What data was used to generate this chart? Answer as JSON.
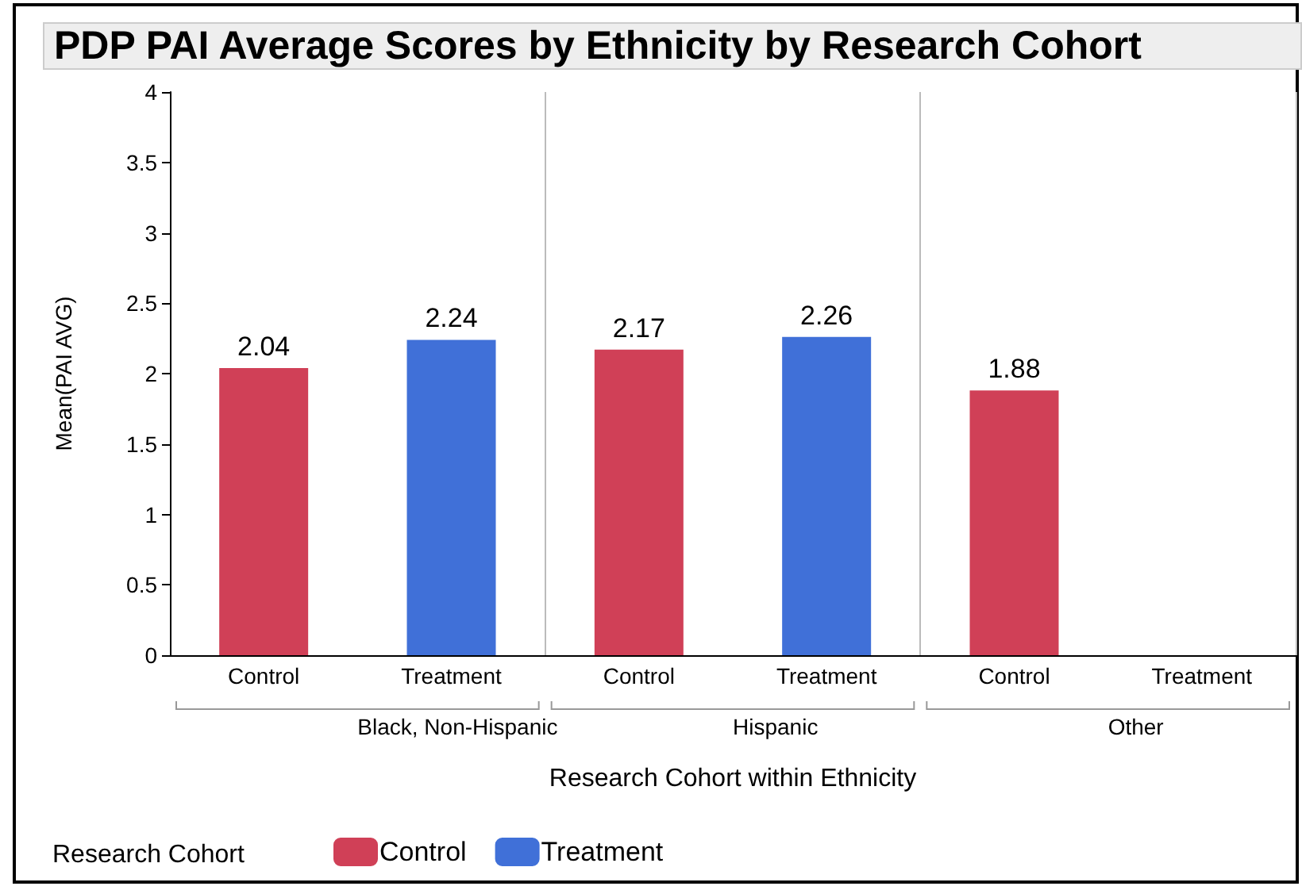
{
  "chart_data": {
    "type": "bar",
    "title": "PDP PAI Average Scores by Ethnicity by Research Cohort",
    "xlabel": "Research Cohort within Ethnicity",
    "ylabel": "Mean(PAI AVG)",
    "legend_title": "Research Cohort",
    "categories": [
      "Control",
      "Treatment",
      "Control",
      "Treatment",
      "Control",
      "Treatment"
    ],
    "annotations": [
      "Black, Non-Hispanic",
      "Hispanic",
      "Other"
    ],
    "series": [
      {
        "name": "Control",
        "color": "#d04057",
        "values": [
          2.04,
          null,
          2.17,
          null,
          1.88,
          null
        ]
      },
      {
        "name": "Treatment",
        "color": "#4070d8",
        "values": [
          null,
          2.24,
          null,
          2.26,
          null,
          null
        ]
      }
    ],
    "ylim": [
      0,
      4
    ],
    "yticks": [
      0,
      0.5,
      1,
      1.5,
      2,
      2.5,
      3,
      3.5,
      4
    ],
    "data_labels": true,
    "grid": false,
    "legend": "bottom left"
  }
}
